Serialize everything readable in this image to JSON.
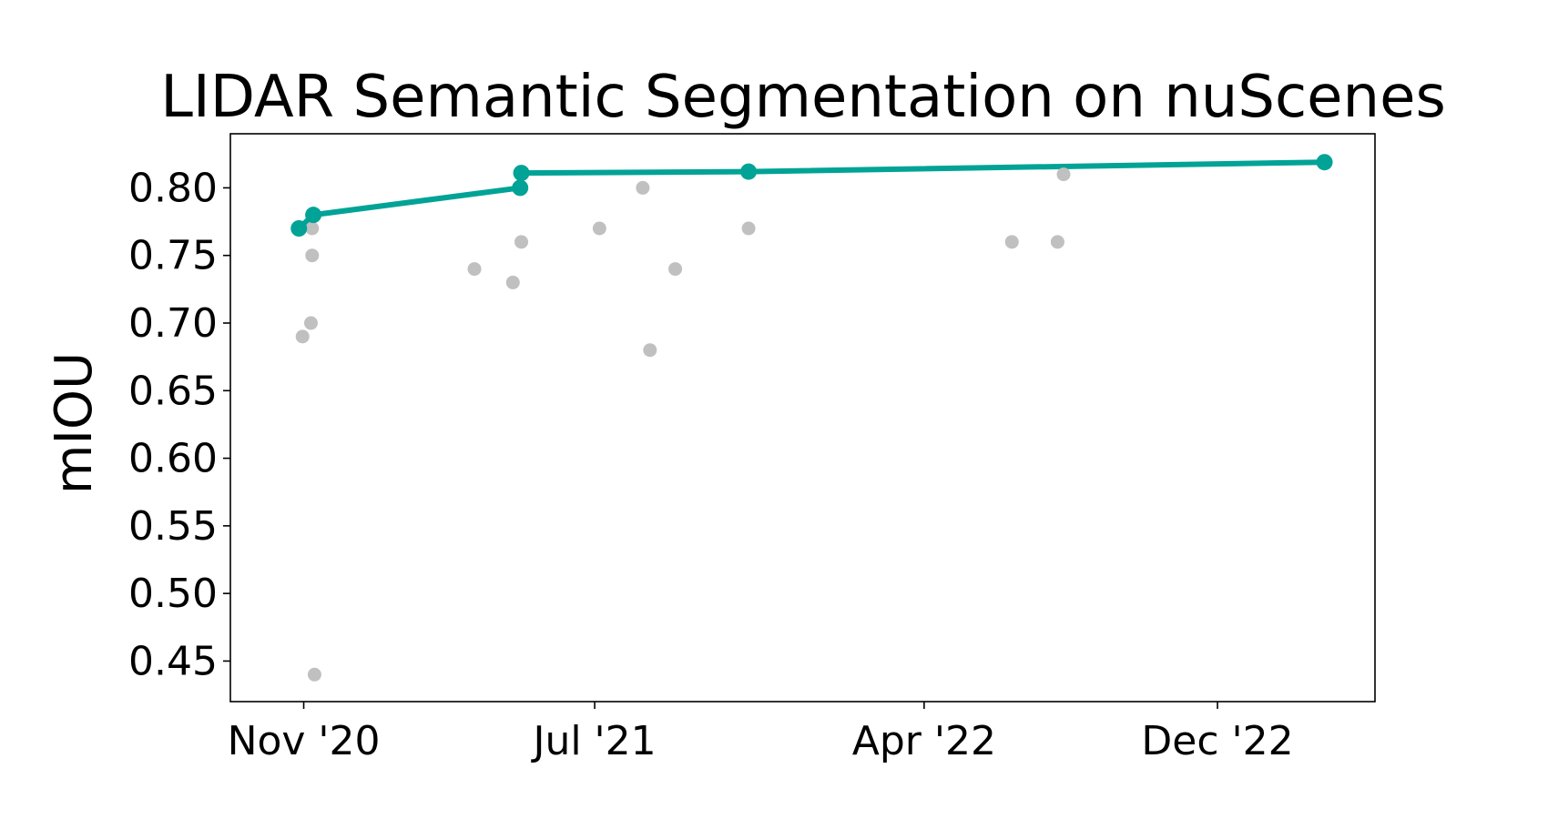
{
  "chart_data": {
    "type": "scatter",
    "title": "LIDAR Semantic Segmentation on nuScenes",
    "xlabel": "",
    "ylabel": "mIOU",
    "x_is_date": true,
    "xlim": [
      "2020-09-01",
      "2023-04-11"
    ],
    "ylim": [
      0.42,
      0.84
    ],
    "xticks": [
      {
        "date": "2020-11-01",
        "label": "Nov '20"
      },
      {
        "date": "2021-07-01",
        "label": "Jul '21"
      },
      {
        "date": "2022-04-01",
        "label": "Apr '22"
      },
      {
        "date": "2022-12-01",
        "label": "Dec '22"
      }
    ],
    "yticks": [
      {
        "value": 0.45,
        "label": "0.45"
      },
      {
        "value": 0.5,
        "label": "0.50"
      },
      {
        "value": 0.55,
        "label": "0.55"
      },
      {
        "value": 0.6,
        "label": "0.60"
      },
      {
        "value": 0.65,
        "label": "0.65"
      },
      {
        "value": 0.7,
        "label": "0.70"
      },
      {
        "value": 0.75,
        "label": "0.75"
      },
      {
        "value": 0.8,
        "label": "0.80"
      }
    ],
    "grid": false,
    "series": [
      {
        "role": "other-results",
        "color": "#c0c0c0",
        "points": [
          {
            "x": "2020-10-31",
            "y": 0.69
          },
          {
            "x": "2021-11-06",
            "y": 0.77
          },
          {
            "x": "2020-11-08",
            "y": 0.77
          },
          {
            "x": "2020-11-08",
            "y": 0.75
          },
          {
            "x": "2020-11-07",
            "y": 0.7
          },
          {
            "x": "2020-11-10",
            "y": 0.44
          },
          {
            "x": "2021-03-23",
            "y": 0.74
          },
          {
            "x": "2021-04-24",
            "y": 0.73
          },
          {
            "x": "2021-05-01",
            "y": 0.76
          },
          {
            "x": "2021-07-05",
            "y": 0.77
          },
          {
            "x": "2021-08-10",
            "y": 0.8
          },
          {
            "x": "2021-08-16",
            "y": 0.68
          },
          {
            "x": "2021-09-06",
            "y": 0.74
          },
          {
            "x": "2022-06-13",
            "y": 0.76
          },
          {
            "x": "2022-07-21",
            "y": 0.76
          },
          {
            "x": "2022-07-26",
            "y": 0.81
          }
        ]
      },
      {
        "role": "state-of-the-art",
        "color": "#00a396",
        "points": [
          {
            "x": "2020-10-28",
            "y": 0.77
          },
          {
            "x": "2020-11-09",
            "y": 0.78
          },
          {
            "x": "2021-04-30",
            "y": 0.8
          },
          {
            "x": "2021-05-01",
            "y": 0.811
          },
          {
            "x": "2021-11-06",
            "y": 0.812
          },
          {
            "x": "2023-02-28",
            "y": 0.819
          }
        ]
      }
    ]
  }
}
